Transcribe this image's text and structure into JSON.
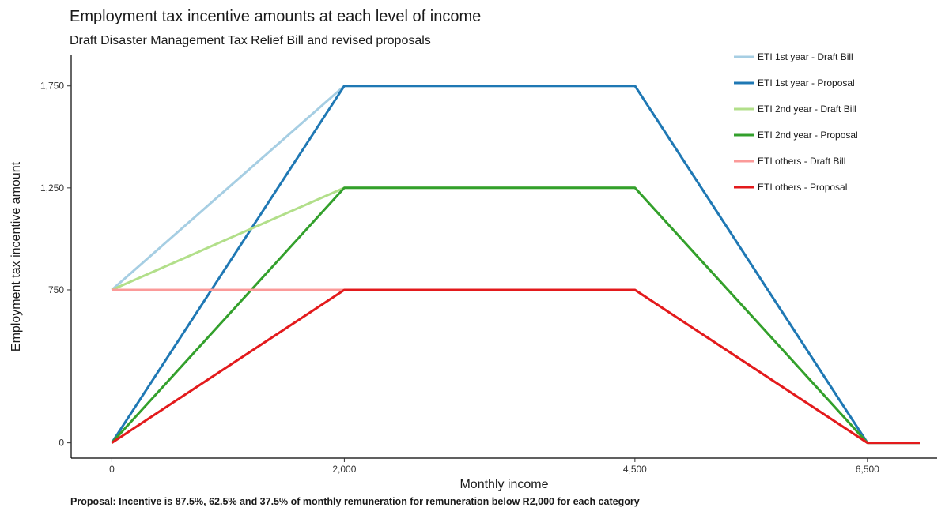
{
  "chart_data": {
    "type": "line",
    "title": "Employment tax incentive amounts at each level of income",
    "subtitle": "Draft Disaster Management Tax Relief Bill and revised proposals",
    "xlabel": "Monthly income",
    "ylabel": "Employment  tax incentive amount",
    "x_ticks": [
      0,
      2000,
      4500,
      6500
    ],
    "x_tick_labels": [
      "0",
      "2,000",
      "4,500",
      "6,500"
    ],
    "y_ticks": [
      0,
      750,
      1250,
      1750
    ],
    "y_tick_labels": [
      "0",
      "750",
      "1,250",
      "1,750"
    ],
    "xlim": [
      -350,
      7100
    ],
    "ylim": [
      -75,
      1900
    ],
    "grid": false,
    "legend_position": "top-right",
    "series": [
      {
        "name": "ETI 1st year - Draft Bill",
        "color": "#a6cee3",
        "x": [
          0,
          2000,
          4500,
          6500,
          6950
        ],
        "y": [
          750,
          1750,
          1750,
          0,
          0
        ]
      },
      {
        "name": "ETI 1st year - Proposal",
        "color": "#1f78b4",
        "x": [
          0,
          2000,
          4500,
          6500,
          6950
        ],
        "y": [
          0,
          1750,
          1750,
          0,
          0
        ]
      },
      {
        "name": "ETI 2nd year - Draft Bill",
        "color": "#b2df8a",
        "x": [
          0,
          2000,
          4500,
          6500,
          6950
        ],
        "y": [
          750,
          1250,
          1250,
          0,
          0
        ]
      },
      {
        "name": "ETI 2nd year - Proposal",
        "color": "#33a02c",
        "x": [
          0,
          2000,
          4500,
          6500,
          6950
        ],
        "y": [
          0,
          1250,
          1250,
          0,
          0
        ]
      },
      {
        "name": "ETI others - Draft Bill",
        "color": "#fb9a99",
        "x": [
          0,
          2000,
          4500,
          6500,
          6950
        ],
        "y": [
          750,
          750,
          750,
          0,
          0
        ]
      },
      {
        "name": "ETI others - Proposal",
        "color": "#e31a1c",
        "x": [
          0,
          2000,
          4500,
          6500,
          6950
        ],
        "y": [
          0,
          750,
          750,
          0,
          0
        ]
      }
    ],
    "footnote": "Proposal: Incentive is 87.5%, 62.5% and 37.5% of monthly remuneration for remuneration below R2,000 for each category"
  }
}
